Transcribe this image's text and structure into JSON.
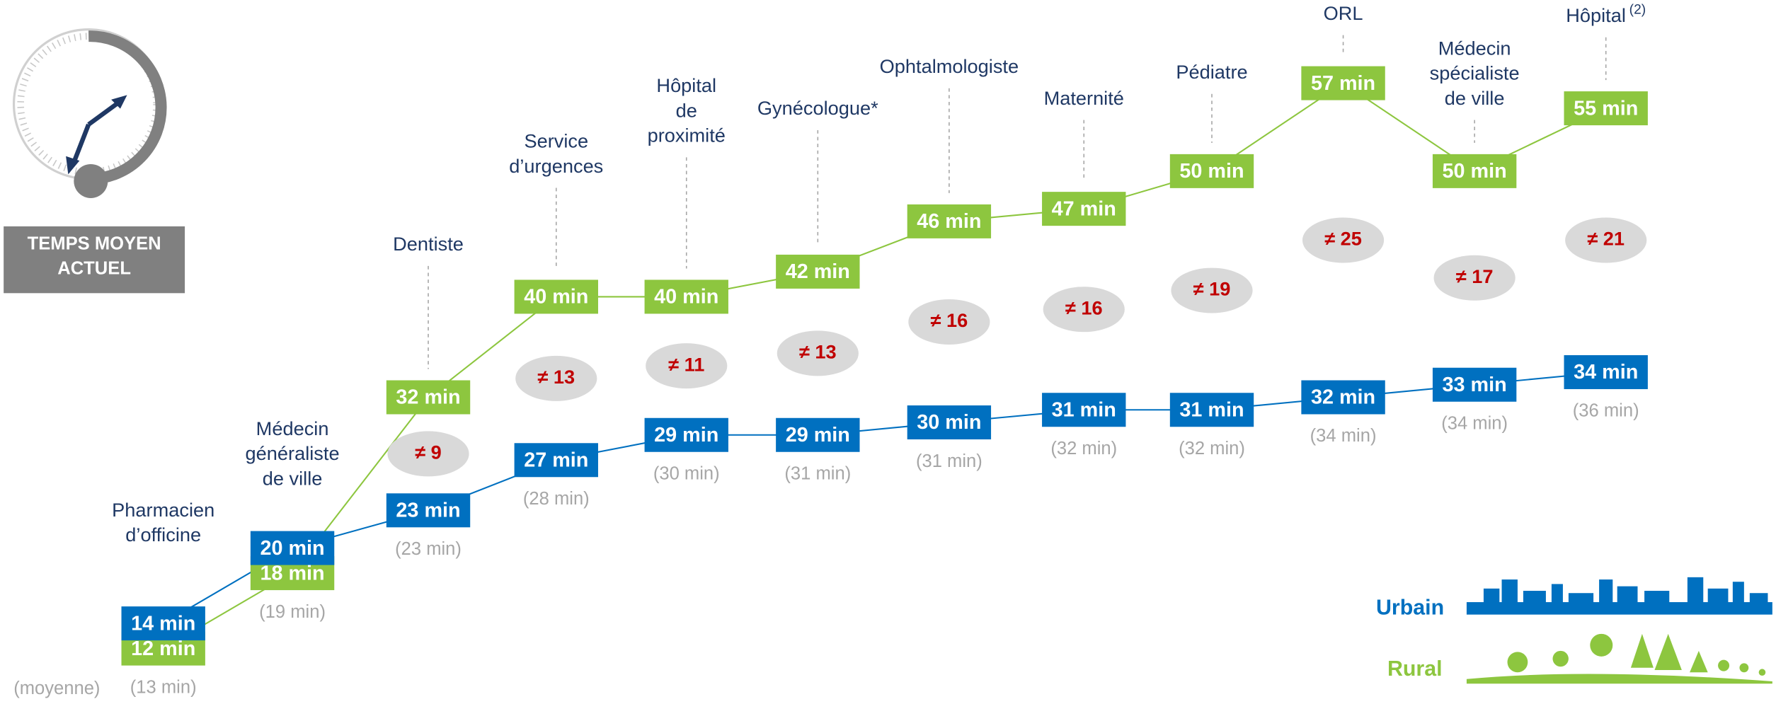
{
  "chart_data": {
    "type": "line",
    "badge": [
      "TEMPS MOYEN",
      "ACTUEL"
    ],
    "categories": [
      [
        "Pharmacien",
        "d’officine"
      ],
      [
        "Médecin",
        "généraliste",
        "de ville"
      ],
      [
        "Dentiste"
      ],
      [
        "Service",
        "d’urgences"
      ],
      [
        "Hôpital",
        "de",
        "proximité"
      ],
      [
        "Gynécologue*"
      ],
      [
        "Ophtalmologiste"
      ],
      [
        "Maternité"
      ],
      [
        "Pédiatre"
      ],
      [
        "ORL"
      ],
      [
        "Médecin",
        "spécialiste",
        "de ville"
      ],
      [
        "Hôpital"
      ]
    ],
    "category_note": "(2)",
    "series": [
      {
        "name": "Rural",
        "color": "#8dc63f",
        "values": [
          12,
          18,
          32,
          40,
          40,
          42,
          46,
          47,
          50,
          57,
          50,
          55
        ],
        "value_labels": [
          "12 min",
          "18 min",
          "32 min",
          "40 min",
          "40 min",
          "42 min",
          "46 min",
          "47 min",
          "50 min",
          "57 min",
          "50 min",
          "55 min"
        ]
      },
      {
        "name": "Urbain",
        "color": "#0070c0",
        "values": [
          14,
          20,
          23,
          27,
          29,
          29,
          30,
          31,
          31,
          32,
          33,
          34
        ],
        "value_labels": [
          "14 min",
          "20 min",
          "23 min",
          "27 min",
          "29 min",
          "29 min",
          "30 min",
          "31 min",
          "31 min",
          "32 min",
          "33 min",
          "34 min"
        ]
      }
    ],
    "differences": {
      "values": [
        null,
        null,
        9,
        13,
        11,
        13,
        16,
        16,
        19,
        25,
        17,
        21
      ],
      "value_labels": [
        null,
        null,
        "≠ 9",
        "≠ 13",
        "≠ 11",
        "≠ 13",
        "≠ 16",
        "≠ 16",
        "≠ 19",
        "≠ 25",
        "≠ 17",
        "≠ 21"
      ]
    },
    "averages": {
      "label": "(moyenne)",
      "values": [
        13,
        19,
        23,
        28,
        30,
        31,
        31,
        32,
        32,
        34,
        34,
        36
      ],
      "value_labels": [
        "(13 min)",
        "(19 min)",
        "(23 min)",
        "(28 min)",
        "(30 min)",
        "(31 min)",
        "(31 min)",
        "(32 min)",
        "(32 min)",
        "(34 min)",
        "(34 min)",
        "(36 min)"
      ]
    }
  }
}
